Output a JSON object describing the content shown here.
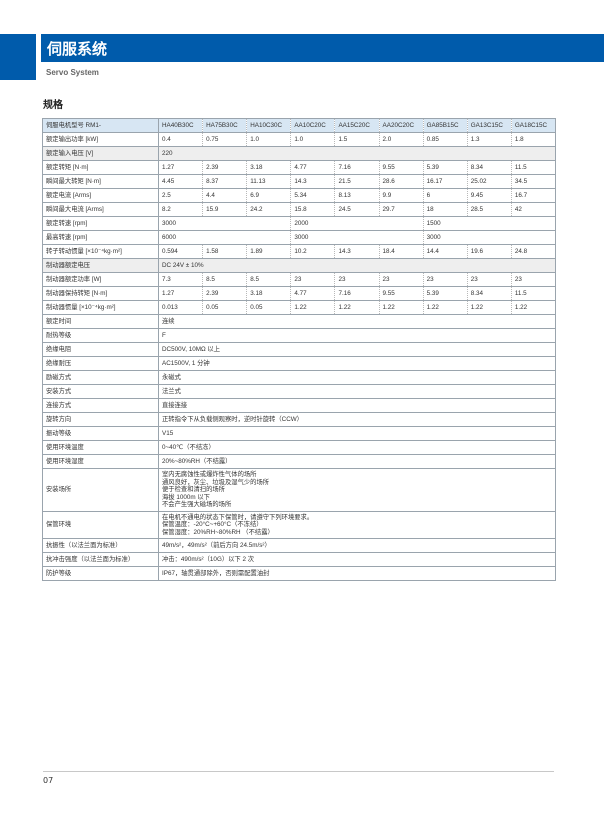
{
  "header": {
    "title": "伺服系统",
    "subtitle": "Servo System",
    "brand_color": "#005bab"
  },
  "section_title": "规格",
  "table": {
    "header_label": "伺服电机型号 RM1-",
    "models": [
      "HA40B30C",
      "HA75B30C",
      "HA10C30C",
      "AA10C20C",
      "AA15C20C",
      "AA20C20C",
      "GA85B15C",
      "GA13C15C",
      "GA18C15C"
    ],
    "rows": [
      {
        "label": "额定输出功率 [kW]",
        "cells": [
          [
            "0.4",
            1
          ],
          [
            "0.75",
            1
          ],
          [
            "1.0",
            1
          ],
          [
            "1.0",
            1
          ],
          [
            "1.5",
            1
          ],
          [
            "2.0",
            1
          ],
          [
            "0.85",
            1
          ],
          [
            "1.3",
            1
          ],
          [
            "1.8",
            1
          ]
        ]
      },
      {
        "label": "额定输入电压 [V]",
        "gray": true,
        "cells": [
          [
            "220",
            9
          ]
        ]
      },
      {
        "label": "额定转矩 [N·m]",
        "cells": [
          [
            "1.27",
            1
          ],
          [
            "2.39",
            1
          ],
          [
            "3.18",
            1
          ],
          [
            "4.77",
            1
          ],
          [
            "7.16",
            1
          ],
          [
            "9.55",
            1
          ],
          [
            "5.39",
            1
          ],
          [
            "8.34",
            1
          ],
          [
            "11.5",
            1
          ]
        ]
      },
      {
        "label": "瞬间最大转矩 [N·m]",
        "cells": [
          [
            "4.45",
            1
          ],
          [
            "8.37",
            1
          ],
          [
            "11.13",
            1
          ],
          [
            "14.3",
            1
          ],
          [
            "21.5",
            1
          ],
          [
            "28.6",
            1
          ],
          [
            "16.17",
            1
          ],
          [
            "25.02",
            1
          ],
          [
            "34.5",
            1
          ]
        ]
      },
      {
        "label": "额定电流 [Arms]",
        "cells": [
          [
            "2.5",
            1
          ],
          [
            "4.4",
            1
          ],
          [
            "6.9",
            1
          ],
          [
            "5.34",
            1
          ],
          [
            "8.13",
            1
          ],
          [
            "9.9",
            1
          ],
          [
            "6",
            1
          ],
          [
            "9.45",
            1
          ],
          [
            "16.7",
            1
          ]
        ]
      },
      {
        "label": "瞬间最大电流 [Arms]",
        "cells": [
          [
            "8.2",
            1
          ],
          [
            "15.9",
            1
          ],
          [
            "24.2",
            1
          ],
          [
            "15.8",
            1
          ],
          [
            "24.5",
            1
          ],
          [
            "29.7",
            1
          ],
          [
            "18",
            1
          ],
          [
            "28.5",
            1
          ],
          [
            "42",
            1
          ]
        ]
      },
      {
        "label": "额定转速 [rpm]",
        "cells": [
          [
            "3000",
            3
          ],
          [
            "2000",
            3
          ],
          [
            "1500",
            3
          ]
        ]
      },
      {
        "label": "最高转速 [rpm]",
        "cells": [
          [
            "6000",
            3
          ],
          [
            "3000",
            3
          ],
          [
            "3000",
            3
          ]
        ]
      },
      {
        "label": "转子转动惯量 [×10⁻⁴kg·m²]",
        "cells": [
          [
            "0.594",
            1
          ],
          [
            "1.58",
            1
          ],
          [
            "1.89",
            1
          ],
          [
            "10.2",
            1
          ],
          [
            "14.3",
            1
          ],
          [
            "18.4",
            1
          ],
          [
            "14.4",
            1
          ],
          [
            "19.6",
            1
          ],
          [
            "24.8",
            1
          ]
        ]
      },
      {
        "label": "制动器额定电压",
        "gray": true,
        "cells": [
          [
            "DC 24V ± 10%",
            9
          ]
        ]
      },
      {
        "label": "制动器额定功率 [W]",
        "cells": [
          [
            "7.3",
            1
          ],
          [
            "8.5",
            1
          ],
          [
            "8.5",
            1
          ],
          [
            "23",
            1
          ],
          [
            "23",
            1
          ],
          [
            "23",
            1
          ],
          [
            "23",
            1
          ],
          [
            "23",
            1
          ],
          [
            "23",
            1
          ]
        ]
      },
      {
        "label": "制动器保持转矩 [N·m]",
        "cells": [
          [
            "1.27",
            1
          ],
          [
            "2.39",
            1
          ],
          [
            "3.18",
            1
          ],
          [
            "4.77",
            1
          ],
          [
            "7.16",
            1
          ],
          [
            "9.55",
            1
          ],
          [
            "5.39",
            1
          ],
          [
            "8.34",
            1
          ],
          [
            "11.5",
            1
          ]
        ]
      },
      {
        "label": "制动器惯量 [×10⁻⁴kg·m²]",
        "cells": [
          [
            "0.013",
            1
          ],
          [
            "0.05",
            1
          ],
          [
            "0.05",
            1
          ],
          [
            "1.22",
            1
          ],
          [
            "1.22",
            1
          ],
          [
            "1.22",
            1
          ],
          [
            "1.22",
            1
          ],
          [
            "1.22",
            1
          ],
          [
            "1.22",
            1
          ]
        ]
      },
      {
        "label": "额定时间",
        "cells": [
          [
            "连续",
            9
          ]
        ]
      },
      {
        "label": "耐热等级",
        "cells": [
          [
            "F",
            9
          ]
        ]
      },
      {
        "label": "绝缘电阻",
        "cells": [
          [
            "DC500V, 10MΩ 以上",
            9
          ]
        ]
      },
      {
        "label": "绝缘耐压",
        "cells": [
          [
            "AC1500V, 1 分钟",
            9
          ]
        ]
      },
      {
        "label": "励磁方式",
        "cells": [
          [
            "永磁式",
            9
          ]
        ]
      },
      {
        "label": "安装方式",
        "cells": [
          [
            "法兰式",
            9
          ]
        ]
      },
      {
        "label": "连接方式",
        "cells": [
          [
            "直接连接",
            9
          ]
        ]
      },
      {
        "label": "旋转方向",
        "cells": [
          [
            "正转指令下从负载侧观察时，逆时针旋转（CCW）",
            9
          ]
        ]
      },
      {
        "label": "振动等级",
        "cells": [
          [
            "V15",
            9
          ]
        ]
      },
      {
        "label": "使用环境温度",
        "cells": [
          [
            "0~40℃（不结冻）",
            9
          ]
        ]
      },
      {
        "label": "使用环境湿度",
        "cells": [
          [
            "20%~80%RH（不结露）",
            9
          ]
        ]
      },
      {
        "label": "安装场所",
        "lines": [
          "室内无腐蚀性或爆炸性气体的场所",
          "通风良好，灰尘、垃圾及湿气少的场所",
          "便于检查和清扫的场所",
          "海拔 1000m 以下",
          "不会产生强大磁场的场所"
        ]
      },
      {
        "label": "保管环境",
        "lines": [
          "在电机不通电的状态下保管时，请遵守下列环境要求。",
          "保管温度：-20°C~+60°C（不冻结）",
          "保管湿度：20%RH~80%RH （不结露）"
        ]
      },
      {
        "label": "抗振性（以法兰面为标准）",
        "cells": [
          [
            "49m/s²，49m/s²（前后方向 24.5m/s²）",
            9
          ]
        ]
      },
      {
        "label": "抗冲击强度（以法兰面为标准）",
        "cells": [
          [
            "冲击：490m/s²（10G）以下 2 次",
            9
          ]
        ]
      },
      {
        "label": "防护等级",
        "cells": [
          [
            "IP67，轴贯通部除外，否则需配置油封",
            9
          ]
        ]
      }
    ]
  },
  "footer": {
    "page_number": "07"
  }
}
